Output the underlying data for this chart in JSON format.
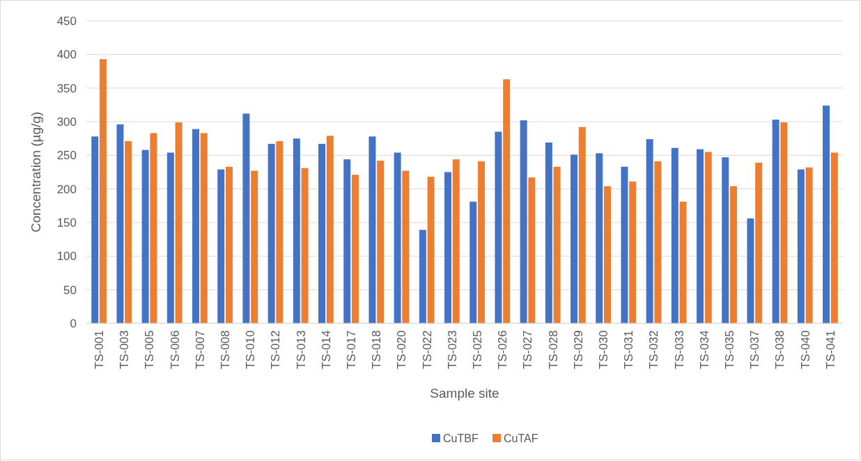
{
  "chart_data": {
    "type": "bar",
    "xlabel": "Sample site",
    "ylabel": "Concentration (µg/g)",
    "categories": [
      "TS-001",
      "TS-003",
      "TS-005",
      "TS-006",
      "TS-007",
      "TS-008",
      "TS-010",
      "TS-012",
      "TS-013",
      "TS-014",
      "TS-017",
      "TS-018",
      "TS-020",
      "TS-022",
      "TS-023",
      "TS-025",
      "TS-026",
      "TS-027",
      "TS-028",
      "TS-029",
      "TS-030",
      "TS-031",
      "TS-032",
      "TS-033",
      "TS-034",
      "TS-035",
      "TS-037",
      "TS-038",
      "TS-040",
      "TS-041"
    ],
    "series": [
      {
        "name": "CuTBF",
        "color": "#4472c4",
        "values": [
          278,
          296,
          258,
          254,
          289,
          229,
          312,
          267,
          275,
          267,
          244,
          278,
          254,
          139,
          225,
          181,
          285,
          302,
          269,
          251,
          253,
          233,
          274,
          261,
          259,
          247,
          156,
          303,
          229,
          324
        ]
      },
      {
        "name": "CuTAF",
        "color": "#ed7d31",
        "values": [
          393,
          271,
          283,
          299,
          283,
          233,
          227,
          271,
          231,
          279,
          221,
          242,
          227,
          218,
          244,
          241,
          363,
          217,
          233,
          292,
          204,
          211,
          241,
          181,
          255,
          204,
          239,
          299,
          232,
          254
        ]
      }
    ],
    "ylim": [
      0,
      450
    ],
    "yticks": [
      0,
      50,
      100,
      150,
      200,
      250,
      300,
      350,
      400,
      450
    ],
    "grid": "y",
    "legend": "bottom"
  }
}
